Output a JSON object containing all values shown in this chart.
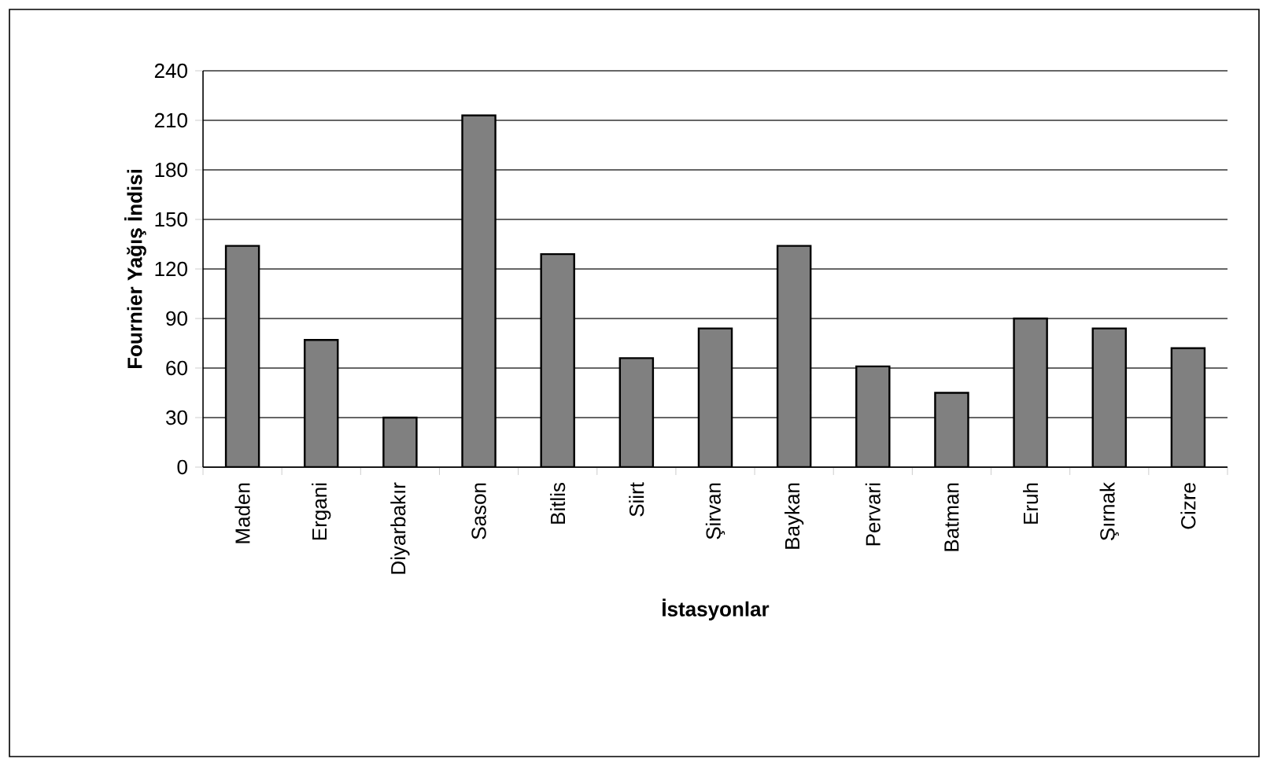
{
  "chart_data": {
    "type": "bar",
    "xlabel": "İstasyonlar",
    "ylabel": "Fournier Yağış İndisi",
    "categories": [
      "Maden",
      "Ergani",
      "Diyarbakır",
      "Sason",
      "Bitlis",
      "Siirt",
      "Şirvan",
      "Baykan",
      "Pervari",
      "Batman",
      "Eruh",
      "Şırnak",
      "Cizre"
    ],
    "values": [
      134,
      77,
      30,
      213,
      129,
      66,
      84,
      134,
      61,
      45,
      90,
      84,
      72
    ],
    "color": "#808080",
    "ylim": [
      0,
      240
    ],
    "yticks": [
      0,
      30,
      60,
      90,
      120,
      150,
      180,
      210,
      240
    ],
    "grid": "y",
    "legend": false
  }
}
